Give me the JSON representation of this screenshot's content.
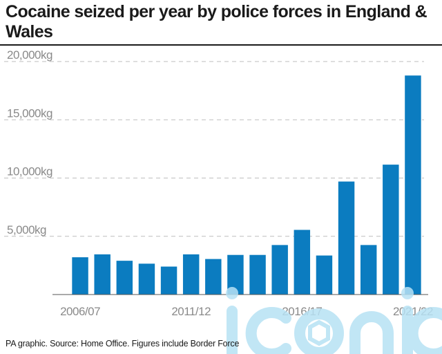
{
  "header": {
    "title": "Cocaine seized per year by police forces in England & Wales"
  },
  "footer": {
    "source": "PA graphic. Source: Home Office. Figures include Border Force"
  },
  "watermark": {
    "text": "iconic"
  },
  "colors": {
    "bar": "#0b7cc0",
    "text": "#1a1a1a",
    "axis_text": "#8a8a8a",
    "grid": "#bdbdbd",
    "watermark": "#b7e2f4"
  },
  "chart_data": {
    "type": "bar",
    "title": "Cocaine seized per year by police forces in England & Wales",
    "xlabel": "",
    "ylabel": "",
    "categories": [
      "2006/07",
      "",
      "",
      "",
      "",
      "2011/12",
      "",
      "",
      "",
      "",
      "2016/17",
      "",
      "",
      "",
      "",
      "2021/22"
    ],
    "values": [
      3200,
      3450,
      2900,
      2650,
      2400,
      3450,
      3050,
      3400,
      3400,
      4250,
      5550,
      3350,
      9700,
      4250,
      11150,
      18800
    ],
    "ylim": [
      0,
      20000
    ],
    "y_ticks": [
      5000,
      10000,
      15000,
      20000
    ],
    "y_tick_labels": [
      "5,000kg",
      "10,000kg",
      "15,000kg",
      "20,000kg"
    ],
    "x_tick_labels": [
      "2006/07",
      "2011/12",
      "2016/17",
      "2021/22"
    ],
    "grid": "horizontal dashed",
    "legend": "none"
  }
}
